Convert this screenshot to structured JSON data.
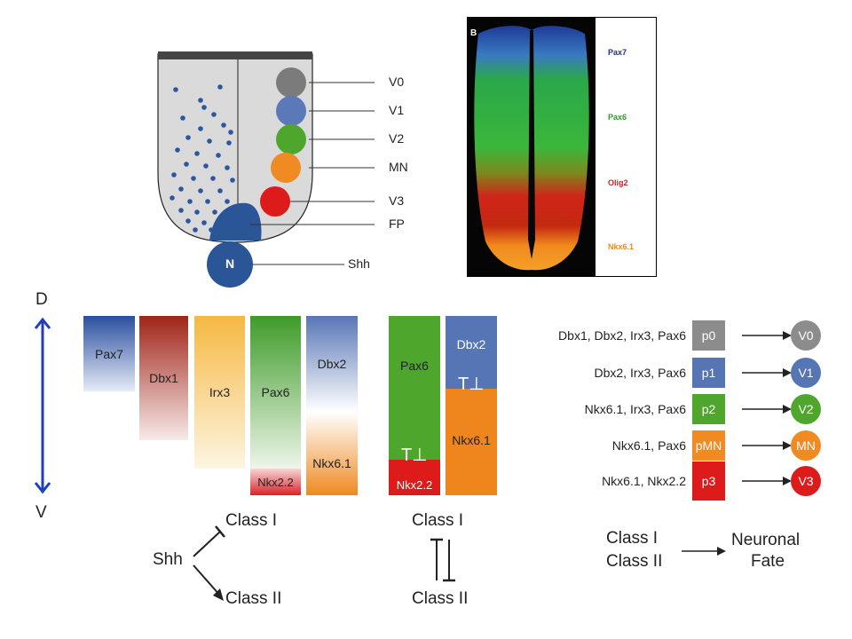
{
  "neural_tube": {
    "fates": [
      {
        "label": "V0",
        "color": "#7b7b7b"
      },
      {
        "label": "V1",
        "color": "#5b79b8"
      },
      {
        "label": "V2",
        "color": "#4ea62c"
      },
      {
        "label": "MN",
        "color": "#f08a22"
      },
      {
        "label": "V3",
        "color": "#dd1b1b"
      }
    ],
    "floor_plate_label": "FP",
    "notochord_letter": "N",
    "notochord_label": "Shh"
  },
  "micrograph": {
    "panel_letter": "B",
    "markers": [
      {
        "label": "Pax7",
        "color": "#1f2f8f"
      },
      {
        "label": "Pax6",
        "color": "#2c9a2c"
      },
      {
        "label": "Olig2",
        "color": "#d12020"
      },
      {
        "label": "Nkx6.1",
        "color": "#ee8a1a"
      }
    ]
  },
  "axis": {
    "dorsal": "D",
    "ventral": "V"
  },
  "gradient_bars": {
    "bars": [
      {
        "label": "Pax7",
        "color": "#2b4ea0"
      },
      {
        "label": "Dbx1",
        "color": "#a02418"
      },
      {
        "label": "Irx3",
        "color": "#f5b842"
      },
      {
        "label": "Pax6",
        "color": "#3f9b2a"
      },
      {
        "label": "Dbx2",
        "color": "#5876b6"
      }
    ],
    "lower_labels": [
      {
        "label": "Nkx2.2",
        "color": "#d8232a"
      },
      {
        "label": "Nkx6.1",
        "color": "#ee8a22"
      }
    ]
  },
  "shh_diagram": {
    "source": "Shh",
    "class1": "Class I",
    "class2": "Class II"
  },
  "boundary_bars": {
    "left": {
      "upper": "Pax6",
      "lower": "Nkx2.2"
    },
    "right": {
      "upper": "Dbx2",
      "lower": "Nkx6.1"
    },
    "inhibition_glyph": "T⊥"
  },
  "cross_repression": {
    "class1": "Class I",
    "class2": "Class II"
  },
  "progenitor_code": {
    "rows": [
      {
        "combo": "Dbx1, Dbx2, Irx3, Pax6",
        "code": "p0",
        "fate": "V0",
        "color": "#8c8c8c"
      },
      {
        "combo": "Dbx2, Irx3, Pax6",
        "code": "p1",
        "fate": "V1",
        "color": "#5675b5"
      },
      {
        "combo": "Nkx6.1, Irx3, Pax6",
        "code": "p2",
        "fate": "V2",
        "color": "#4ea62c"
      },
      {
        "combo": "Nkx6.1, Pax6",
        "code": "pMN",
        "fate": "MN",
        "color": "#f08a22"
      },
      {
        "combo": "Nkx6.1, Nkx2.2",
        "code": "p3",
        "fate": "V3",
        "color": "#dd1b1b"
      }
    ]
  },
  "summary": {
    "class1": "Class I",
    "class2": "Class II",
    "result_line1": "Neuronal",
    "result_line2": "Fate"
  }
}
